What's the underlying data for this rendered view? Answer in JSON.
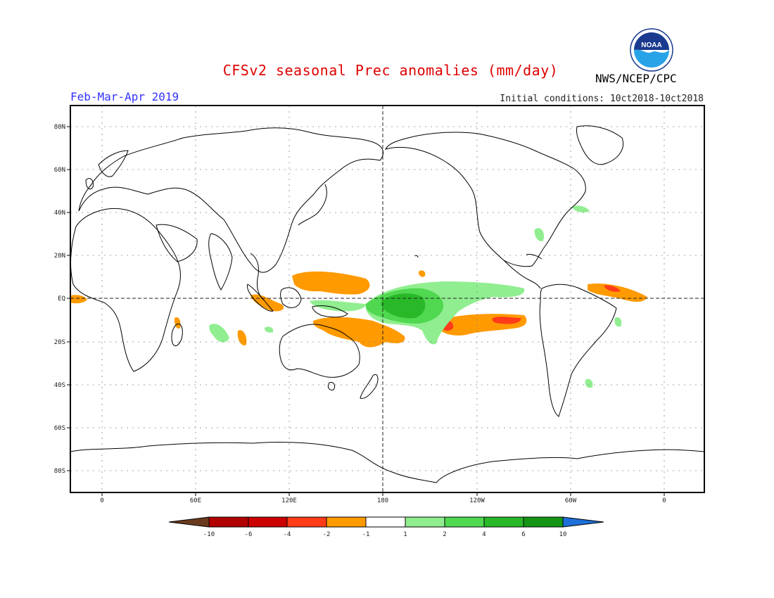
{
  "title": "CFSv2 seasonal Prec anomalies (mm/day)",
  "period": "Feb-Mar-Apr 2019",
  "initial_conditions": "Initial conditions: 10ct2018-10ct2018",
  "agency": "NWS/NCEP/CPC",
  "logo_text": "NOAA",
  "lat_labels": [
    "80N",
    "60N",
    "40N",
    "20N",
    "EQ",
    "20S",
    "40S",
    "60S",
    "80S"
  ],
  "lon_labels": [
    "0",
    "60E",
    "120E",
    "180",
    "120W",
    "60W",
    "0"
  ],
  "colorbar": {
    "labels": [
      "-10",
      "-6",
      "-4",
      "-2",
      "-1",
      "1",
      "2",
      "4",
      "6",
      "10"
    ],
    "colors": [
      "#6b3a1e",
      "#b00000",
      "#cc0000",
      "#ff3b1a",
      "#ff9a00",
      "#ffffff",
      "#90ee90",
      "#50d850",
      "#28b828",
      "#149614",
      "#1e6fd8"
    ]
  },
  "anomaly_colors": {
    "dry_moderate": "#ff9a00",
    "dry_strong": "#ff3b1a",
    "wet_light": "#90ee90",
    "wet_moderate": "#50d850",
    "wet_strong": "#28b828"
  }
}
